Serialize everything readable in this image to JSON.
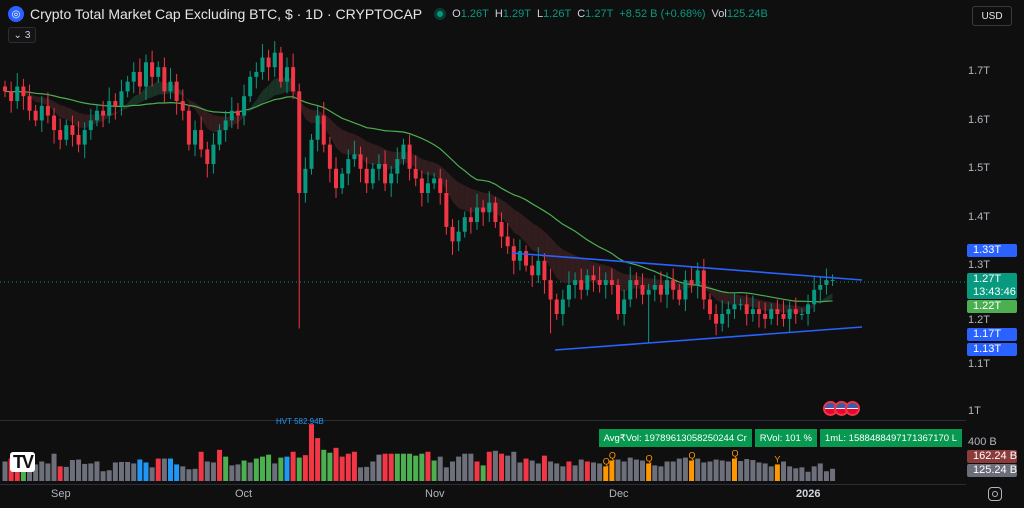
{
  "header": {
    "title": "Crypto Total Market Cap Excluding BTC, $ · 1D · CRYPTOCAP",
    "open_label": "O",
    "open": "1.26T",
    "high_label": "H",
    "high": "1.29T",
    "low_label": "L",
    "low": "1.26T",
    "close_label": "C",
    "close": "1.27T",
    "change": "+8.52 B (+0.68%)",
    "vol_label": "Vol",
    "vol": "125.24B",
    "indicators_count": "3",
    "currency": "USD"
  },
  "price_axis": {
    "labels": [
      "1.7T",
      "1.6T",
      "1.5T",
      "1.4T",
      "1.3T",
      "1.2T",
      "1.1T",
      "1T"
    ]
  },
  "badges": {
    "upper_line": "1.33T",
    "last_price": "1.27T",
    "countdown": "13:43:46",
    "ma": "1.22T",
    "lower_line": "1.17T",
    "lower_low": "1.13T"
  },
  "volume_axis": {
    "label": "400 B",
    "vol_ma": "162.24 B",
    "vol": "125.24 B"
  },
  "volume_stats": {
    "avg": "Avg₹Vol: 19789613058250244 Cr",
    "rvol": "RVol: 101 %",
    "ml": "1mL: 1588488497171367170 L",
    "hvt": "HVT 582.94B"
  },
  "time_axis": [
    "Sep",
    "Oct",
    "Nov",
    "Dec",
    "2026"
  ],
  "colors": {
    "up": "#089981",
    "down": "#f23645",
    "ma": "#4caf50",
    "trend": "#2962ff",
    "bg": "#0f0f0f"
  },
  "series": {
    "closes": [
      1.66,
      1.64,
      1.67,
      1.65,
      1.62,
      1.6,
      1.63,
      1.61,
      1.58,
      1.56,
      1.59,
      1.57,
      1.55,
      1.58,
      1.6,
      1.62,
      1.61,
      1.64,
      1.63,
      1.66,
      1.68,
      1.7,
      1.67,
      1.72,
      1.69,
      1.71,
      1.66,
      1.68,
      1.64,
      1.62,
      1.55,
      1.58,
      1.54,
      1.51,
      1.55,
      1.58,
      1.6,
      1.62,
      1.61,
      1.65,
      1.69,
      1.7,
      1.73,
      1.71,
      1.74,
      1.68,
      1.71,
      1.66,
      1.45,
      1.5,
      1.56,
      1.61,
      1.55,
      1.5,
      1.46,
      1.49,
      1.52,
      1.53,
      1.5,
      1.47,
      1.5,
      1.51,
      1.47,
      1.49,
      1.52,
      1.55,
      1.5,
      1.48,
      1.45,
      1.47,
      1.48,
      1.45,
      1.38,
      1.35,
      1.37,
      1.4,
      1.39,
      1.42,
      1.41,
      1.43,
      1.39,
      1.36,
      1.34,
      1.31,
      1.33,
      1.3,
      1.28,
      1.31,
      1.27,
      1.23,
      1.2,
      1.23,
      1.26,
      1.27,
      1.25,
      1.28,
      1.27,
      1.26,
      1.27,
      1.26,
      1.2,
      1.23,
      1.27,
      1.26,
      1.24,
      1.25,
      1.26,
      1.24,
      1.27,
      1.25,
      1.23,
      1.27,
      1.26,
      1.29,
      1.23,
      1.2,
      1.18,
      1.2,
      1.21,
      1.22,
      1.22,
      1.2,
      1.21,
      1.2,
      1.19,
      1.21,
      1.2,
      1.19,
      1.21,
      1.2,
      1.2,
      1.22,
      1.25,
      1.26,
      1.27,
      1.27
    ],
    "low_overrides": {
      "48": 1.17,
      "89": 1.16,
      "105": 1.14
    },
    "volumes": [
      200,
      230,
      280,
      240,
      180,
      170,
      200,
      180,
      280,
      150,
      145,
      215,
      220,
      175,
      180,
      200,
      100,
      110,
      190,
      195,
      195,
      180,
      220,
      190,
      140,
      230,
      230,
      230,
      170,
      150,
      120,
      125,
      300,
      200,
      190,
      320,
      250,
      160,
      170,
      210,
      190,
      230,
      250,
      270,
      180,
      240,
      250,
      300,
      240,
      265,
      582.94,
      440,
      320,
      290,
      340,
      250,
      280,
      300,
      140,
      145,
      200,
      270,
      280,
      280,
      280,
      280,
      280,
      260,
      280,
      300,
      210,
      250,
      140,
      200,
      250,
      280,
      280,
      200,
      160,
      300,
      310,
      280,
      260,
      300,
      190,
      230,
      210,
      180,
      260,
      200,
      180,
      150,
      200,
      160,
      220,
      200,
      190,
      180,
      150,
      210,
      220,
      200,
      240,
      220,
      210,
      180,
      160,
      150,
      200,
      200,
      230,
      240,
      210,
      230,
      190,
      200,
      220,
      210,
      200,
      230,
      205,
      225,
      215,
      190,
      180,
      150,
      170,
      200,
      150,
      130,
      140,
      95,
      150,
      180,
      100,
      125.24
    ],
    "vol_colors": "grrGgggggrggggggggggggbbgrgbbgggrggrGggGgGGGgGbrGrrrGGrrrrggg rrGGGGGrGggggggrGrgrgggrggrgggrggrggggggggggggggggggggggggggggggggggggggggggggggbgg",
    "markers": [
      {
        "index": 98,
        "label": "Q"
      },
      {
        "index": 99,
        "label": "Q"
      },
      {
        "index": 105,
        "label": "Q"
      },
      {
        "index": 112,
        "label": "Q"
      },
      {
        "index": 119,
        "label": "Q"
      },
      {
        "index": 126,
        "label": "Y"
      }
    ]
  }
}
